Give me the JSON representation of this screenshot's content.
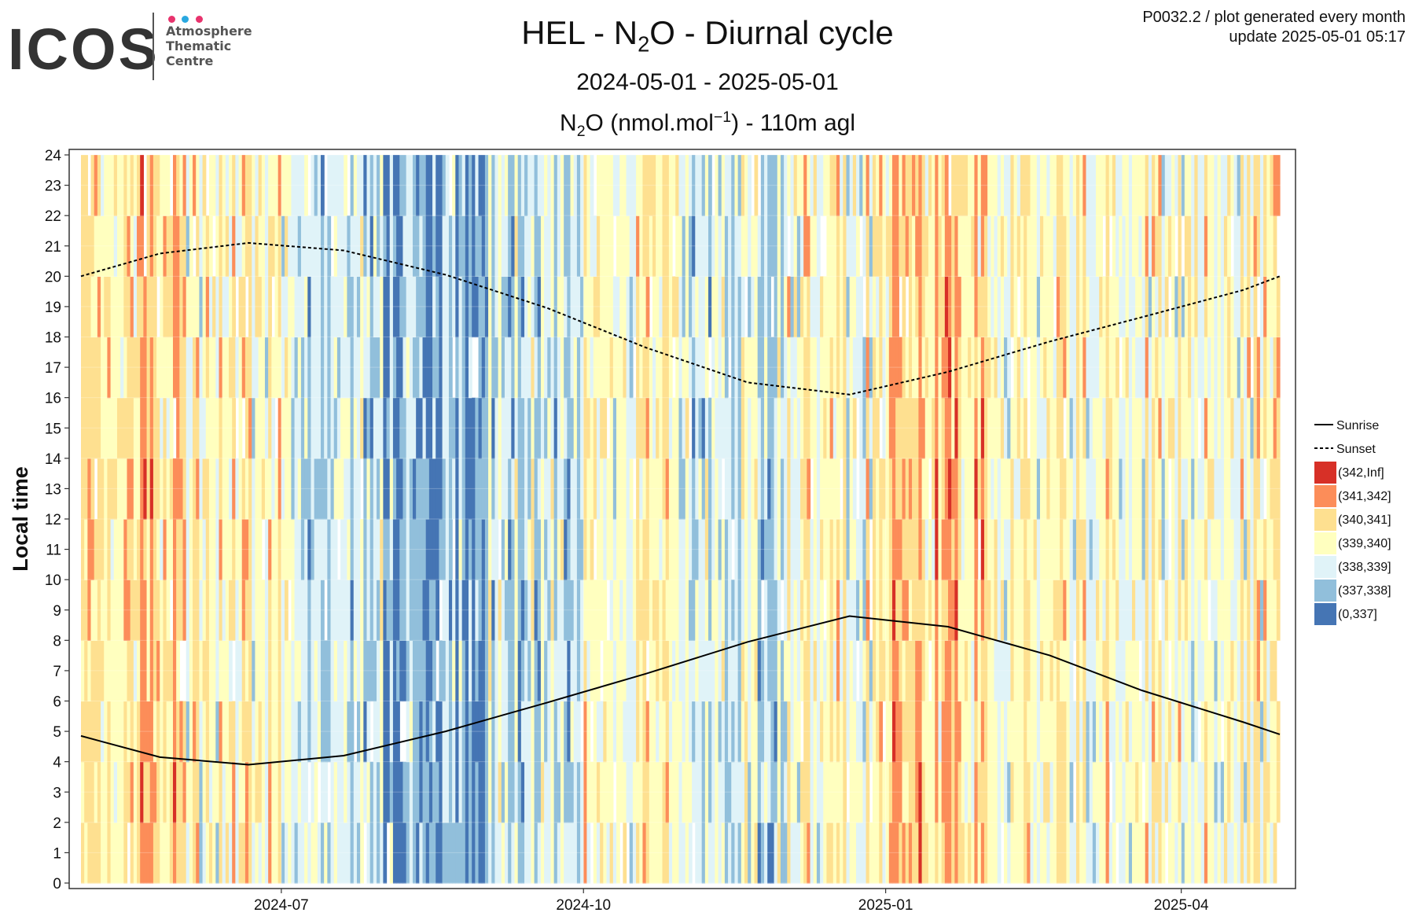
{
  "header": {
    "title_prefix": "HEL - N",
    "title_sub": "2",
    "title_suffix": "O - Diurnal cycle",
    "period": "2024-05-01 - 2025-05-01",
    "unit_prefix": "N",
    "unit_sub": "2",
    "unit_mid": "O (nmol.mol",
    "unit_sup": "−1",
    "unit_suffix": ") - 110m agl",
    "meta_line1": "P0032.2 / plot generated every month",
    "meta_line2": "update  2025-05-01 05:17"
  },
  "logo": {
    "wordmark": "ICOS",
    "line1": "Atmosphere",
    "line2": "Thematic",
    "line3": "Centre",
    "dot_colors": [
      "#e8336d",
      "#2aa8e0",
      "#e8336d"
    ]
  },
  "chart_data": {
    "type": "heatmap",
    "title": "HEL - N2O - Diurnal cycle",
    "subtitle": "2024-05-01 - 2025-05-01",
    "value_label": "N2O (nmol.mol−1) - 110m agl",
    "ylabel": "Local time",
    "xlabel": "",
    "x_range": [
      "2024-05-01",
      "2025-05-01"
    ],
    "ylim": [
      0,
      24
    ],
    "y_ticks": [
      0,
      1,
      2,
      3,
      4,
      5,
      6,
      7,
      8,
      9,
      10,
      11,
      12,
      13,
      14,
      15,
      16,
      17,
      18,
      19,
      20,
      21,
      22,
      23,
      24
    ],
    "x_ticks": [
      {
        "date": "2024-07-01",
        "label": "2024-07"
      },
      {
        "date": "2024-10-01",
        "label": "2024-10"
      },
      {
        "date": "2025-01-01",
        "label": "2025-01"
      },
      {
        "date": "2025-04-01",
        "label": "2025-04"
      }
    ],
    "grid": true,
    "legend_position": "right",
    "bins": [
      {
        "label": "(342,Inf]",
        "color": "#d73027"
      },
      {
        "label": "(341,342]",
        "color": "#fc8d59"
      },
      {
        "label": "(340,341]",
        "color": "#fee090"
      },
      {
        "label": "(339,340]",
        "color": "#ffffbf"
      },
      {
        "label": "(338,339]",
        "color": "#e0f3f8"
      },
      {
        "label": "(337,338]",
        "color": "#91bfdb"
      },
      {
        "label": "(0,337]",
        "color": "#4575b4"
      }
    ],
    "monthly_typical_bin": [
      {
        "month": "2024-05",
        "bin": "(340,341]"
      },
      {
        "month": "2024-06",
        "bin": "(339,340]"
      },
      {
        "month": "2024-07",
        "bin": "(338,339]"
      },
      {
        "month": "2024-08",
        "bin": "(337,338]"
      },
      {
        "month": "2024-09",
        "bin": "(338,339]"
      },
      {
        "month": "2024-10",
        "bin": "(339,340]"
      },
      {
        "month": "2024-11",
        "bin": "(338,339]"
      },
      {
        "month": "2024-12",
        "bin": "(339,340]"
      },
      {
        "month": "2025-01",
        "bin": "(340,341]"
      },
      {
        "month": "2025-02",
        "bin": "(339,340]"
      },
      {
        "month": "2025-03",
        "bin": "(339,340]"
      },
      {
        "month": "2025-04",
        "bin": "(339,340]"
      }
    ],
    "series": [
      {
        "name": "Sunrise",
        "line_style": "solid",
        "points": [
          {
            "x": "2024-05-01",
            "y": 4.85
          },
          {
            "x": "2024-05-25",
            "y": 4.15
          },
          {
            "x": "2024-06-21",
            "y": 3.9
          },
          {
            "x": "2024-07-20",
            "y": 4.2
          },
          {
            "x": "2024-08-20",
            "y": 5.0
          },
          {
            "x": "2024-09-20",
            "y": 5.95
          },
          {
            "x": "2024-10-20",
            "y": 6.9
          },
          {
            "x": "2024-11-20",
            "y": 7.95
          },
          {
            "x": "2024-12-21",
            "y": 8.8
          },
          {
            "x": "2025-01-20",
            "y": 8.45
          },
          {
            "x": "2025-02-20",
            "y": 7.5
          },
          {
            "x": "2025-03-20",
            "y": 6.35
          },
          {
            "x": "2025-04-20",
            "y": 5.3
          },
          {
            "x": "2025-05-01",
            "y": 4.9
          }
        ]
      },
      {
        "name": "Sunset",
        "line_style": "dashed",
        "points": [
          {
            "x": "2024-05-01",
            "y": 20.0
          },
          {
            "x": "2024-05-25",
            "y": 20.75
          },
          {
            "x": "2024-06-21",
            "y": 21.1
          },
          {
            "x": "2024-07-20",
            "y": 20.85
          },
          {
            "x": "2024-08-20",
            "y": 20.05
          },
          {
            "x": "2024-09-20",
            "y": 18.95
          },
          {
            "x": "2024-10-20",
            "y": 17.65
          },
          {
            "x": "2024-11-20",
            "y": 16.5
          },
          {
            "x": "2024-12-21",
            "y": 16.1
          },
          {
            "x": "2025-01-20",
            "y": 16.85
          },
          {
            "x": "2025-02-20",
            "y": 17.85
          },
          {
            "x": "2025-03-20",
            "y": 18.65
          },
          {
            "x": "2025-04-20",
            "y": 19.55
          },
          {
            "x": "2025-05-01",
            "y": 20.0
          }
        ]
      }
    ],
    "legend_entries": [
      "Sunrise",
      "Sunset"
    ]
  }
}
